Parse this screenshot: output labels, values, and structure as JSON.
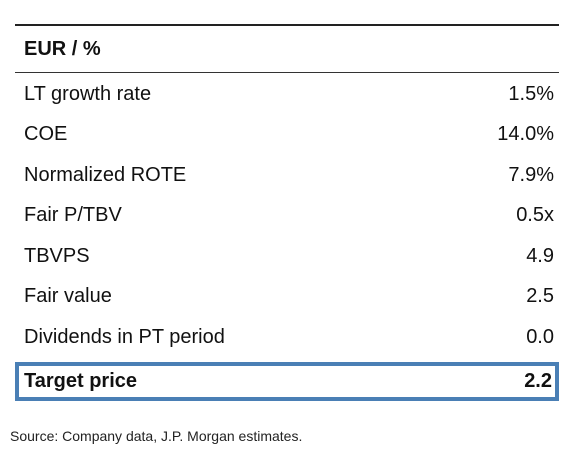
{
  "table": {
    "header": "EUR / %",
    "rows": [
      {
        "label": "LT growth rate",
        "value": "1.5%"
      },
      {
        "label": "COE",
        "value": "14.0%"
      },
      {
        "label": "Normalized ROTE",
        "value": "7.9%"
      },
      {
        "label": "Fair P/TBV",
        "value": "0.5x"
      },
      {
        "label": "TBVPS",
        "value": "4.9"
      },
      {
        "label": "Fair value",
        "value": "2.5"
      },
      {
        "label": "Dividends in PT period",
        "value": "0.0"
      }
    ],
    "highlight": {
      "label": "Target price",
      "value": "2.2"
    },
    "highlight_border_color": "#4a7fb5"
  },
  "source": "Source: Company data, J.P. Morgan estimates."
}
